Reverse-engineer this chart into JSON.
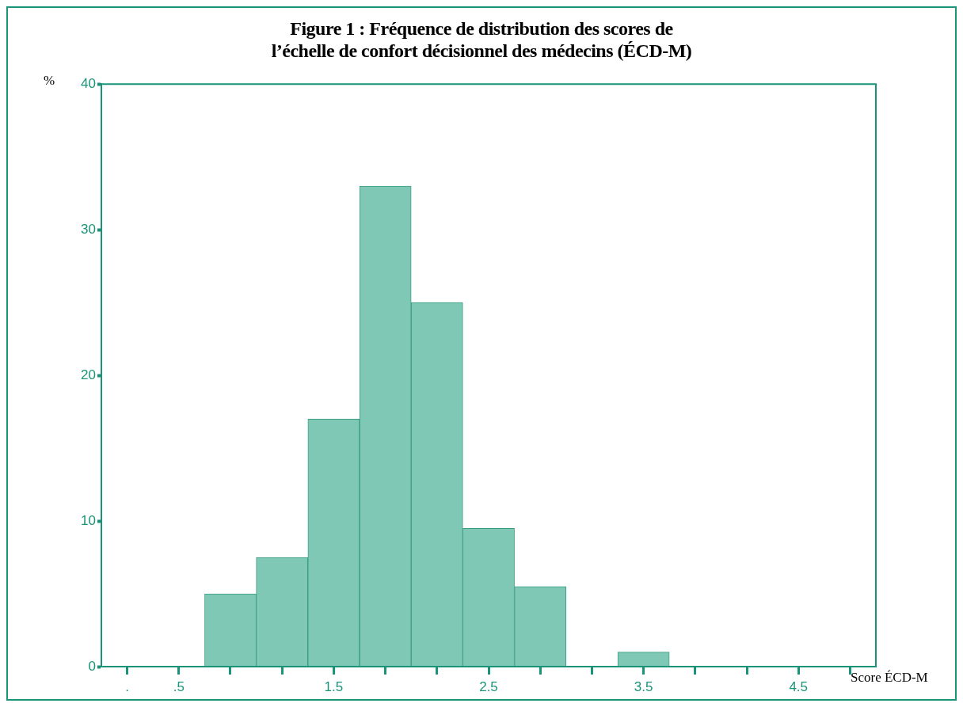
{
  "chart_data": {
    "type": "histogram",
    "title": "Figure 1 : Fréquence de distribution des scores de\nl’échelle de confort décisionnel des médecins (ÉCD-M)",
    "xlabel": "Score ÉCD-M",
    "ylabel": "%",
    "bins": [
      0.667,
      1,
      1.333,
      1.667,
      2,
      2.333,
      2.667,
      3,
      3.333,
      3.667
    ],
    "values": [
      5,
      7.5,
      17,
      33,
      25,
      9.5,
      5.5,
      0,
      1
    ],
    "color": "#7fc8b5",
    "xlim": [
      0,
      5
    ],
    "xticks": [
      {
        "value": 0.167,
        "label": "."
      },
      {
        "value": 0.5,
        "label": ".5"
      },
      {
        "value": 0.833,
        "label": null
      },
      {
        "value": 1.167,
        "label": null
      },
      {
        "value": 1.5,
        "label": "1.5"
      },
      {
        "value": 1.833,
        "label": null
      },
      {
        "value": 2.167,
        "label": null
      },
      {
        "value": 2.5,
        "label": "2.5"
      },
      {
        "value": 2.833,
        "label": null
      },
      {
        "value": 3.167,
        "label": null
      },
      {
        "value": 3.5,
        "label": "3.5"
      },
      {
        "value": 3.833,
        "label": null
      },
      {
        "value": 4.167,
        "label": null
      },
      {
        "value": 4.5,
        "label": "4.5"
      },
      {
        "value": 4.833,
        "label": null
      }
    ],
    "ylim": [
      0,
      40
    ],
    "yticks": [
      0,
      10,
      20,
      30,
      40
    ],
    "grid": false,
    "legend": false
  }
}
